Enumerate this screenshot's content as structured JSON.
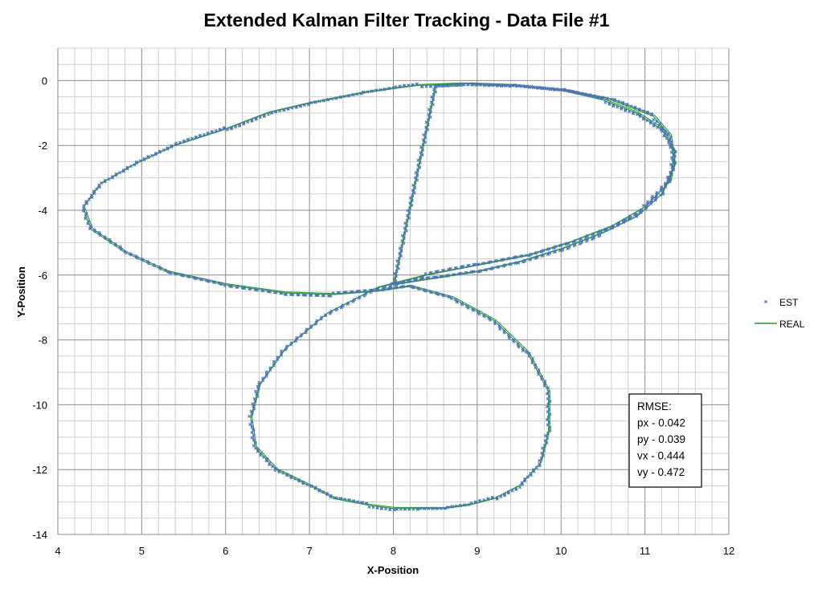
{
  "chart_data": {
    "type": "scatter",
    "title": "Extended Kalman Filter Tracking - Data File #1",
    "xlabel": "X-Position",
    "ylabel": "Y-Position",
    "xlim": [
      4,
      12
    ],
    "ylim": [
      -14,
      1
    ],
    "x_ticks": [
      4,
      5,
      6,
      7,
      8,
      9,
      10,
      11,
      12
    ],
    "y_ticks": [
      0,
      -2,
      -4,
      -6,
      -8,
      -10,
      -12,
      -14
    ],
    "grid": "major and minor",
    "legend_position": "right",
    "series": [
      {
        "name": "EST",
        "style": "markers",
        "color": "#4F71BE",
        "x": [
          8.0,
          8.5,
          9.0,
          9.5,
          10.0,
          10.5,
          10.9,
          11.2,
          11.35,
          11.3,
          11.1,
          10.6,
          10.0,
          9.4,
          8.8,
          8.3,
          8.0,
          7.6,
          7.0,
          6.5,
          6.0,
          5.4,
          4.9,
          4.5,
          4.3,
          4.4,
          4.8,
          5.3,
          6.0,
          6.7,
          7.3,
          7.8,
          8.2,
          8.7,
          9.2,
          9.6,
          9.85,
          9.85,
          9.75,
          9.5,
          9.2,
          8.9,
          8.6,
          8.3,
          8.0,
          7.7,
          7.3,
          7.0,
          6.6,
          6.35,
          6.3,
          6.4,
          6.7,
          7.2,
          7.8,
          8.4,
          9.0,
          9.6,
          10.1,
          10.6,
          11.0,
          11.3,
          11.35,
          11.2,
          10.9,
          10.5,
          10.0,
          9.4,
          8.9,
          8.5,
          8.0
        ],
        "y": [
          -6.3,
          -6.1,
          -5.9,
          -5.6,
          -5.2,
          -4.7,
          -4.2,
          -3.5,
          -2.6,
          -1.7,
          -1.1,
          -0.6,
          -0.3,
          -0.15,
          -0.1,
          -0.15,
          -0.25,
          -0.4,
          -0.7,
          -1.0,
          -1.5,
          -2.0,
          -2.6,
          -3.2,
          -3.9,
          -4.6,
          -5.3,
          -5.9,
          -6.3,
          -6.55,
          -6.6,
          -6.5,
          -6.35,
          -6.7,
          -7.4,
          -8.4,
          -9.6,
          -10.8,
          -11.8,
          -12.5,
          -12.9,
          -13.1,
          -13.2,
          -13.2,
          -13.2,
          -13.1,
          -12.9,
          -12.5,
          -12.0,
          -11.3,
          -10.4,
          -9.4,
          -8.3,
          -7.2,
          -6.4,
          -6.0,
          -5.7,
          -5.4,
          -5.0,
          -4.5,
          -3.9,
          -3.1,
          -2.2,
          -1.5,
          -1.0,
          -0.6,
          -0.3,
          -0.15,
          -0.1,
          -0.15,
          -6.3
        ]
      },
      {
        "name": "REAL",
        "style": "line",
        "color": "#1FA22E",
        "x": [
          8.0,
          8.5,
          9.0,
          9.5,
          10.0,
          10.5,
          10.9,
          11.2,
          11.35,
          11.3,
          11.1,
          10.6,
          10.0,
          9.4,
          8.8,
          8.3,
          8.0,
          7.6,
          7.0,
          6.5,
          6.0,
          5.4,
          4.9,
          4.5,
          4.3,
          4.4,
          4.8,
          5.3,
          6.0,
          6.7,
          7.3,
          7.8,
          8.2,
          8.7,
          9.2,
          9.6,
          9.85,
          9.85,
          9.75,
          9.5,
          9.2,
          8.9,
          8.6,
          8.3,
          8.0,
          7.7,
          7.3,
          7.0,
          6.6,
          6.35,
          6.3,
          6.4,
          6.7,
          7.2,
          7.8,
          8.4,
          9.0,
          9.6,
          10.1,
          10.6,
          11.0,
          11.3,
          11.35,
          11.2,
          10.9,
          10.5,
          10.0,
          9.4,
          8.9,
          8.5,
          8.0
        ],
        "y": [
          -6.3,
          -6.1,
          -5.9,
          -5.6,
          -5.2,
          -4.7,
          -4.2,
          -3.5,
          -2.6,
          -1.7,
          -1.1,
          -0.6,
          -0.3,
          -0.15,
          -0.1,
          -0.15,
          -0.25,
          -0.4,
          -0.7,
          -1.0,
          -1.5,
          -2.0,
          -2.6,
          -3.2,
          -3.9,
          -4.6,
          -5.3,
          -5.9,
          -6.3,
          -6.55,
          -6.6,
          -6.5,
          -6.35,
          -6.7,
          -7.4,
          -8.4,
          -9.6,
          -10.8,
          -11.8,
          -12.5,
          -12.9,
          -13.1,
          -13.2,
          -13.2,
          -13.2,
          -13.1,
          -12.9,
          -12.5,
          -12.0,
          -11.3,
          -10.4,
          -9.4,
          -8.3,
          -7.2,
          -6.4,
          -6.0,
          -5.7,
          -5.4,
          -5.0,
          -4.5,
          -3.9,
          -3.1,
          -2.2,
          -1.5,
          -1.0,
          -0.6,
          -0.3,
          -0.15,
          -0.1,
          -0.15,
          -6.3
        ]
      }
    ],
    "annotation": {
      "lines": [
        "RMSE:",
        "px - 0.042",
        "py - 0.039",
        "vx - 0.444",
        "vy - 0.472"
      ]
    }
  }
}
